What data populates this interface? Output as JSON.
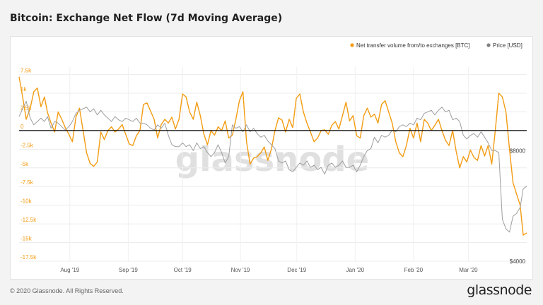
{
  "title": "Bitcoin: Exchange Net Flow (7d Moving Average)",
  "footer": "© 2020 Glassnode. All Rights Reserved.",
  "logo": "glassnode",
  "watermark": "glassnode",
  "colors": {
    "netflow": "#f39c12",
    "price": "#9e9e9e",
    "zero_line": "#000000"
  },
  "chart_data": {
    "type": "line",
    "title": "Bitcoin: Exchange Net Flow (7d Moving Average)",
    "legend_position": "top-right",
    "legend": [
      {
        "name": "Net transfer volume from/to exchanges [BTC]",
        "color": "#f39c12"
      },
      {
        "name": "Price [USD]",
        "color": "#808080"
      }
    ],
    "x_range": [
      0,
      100
    ],
    "x_ticks": [
      {
        "label": "Aug '19",
        "x": 10
      },
      {
        "label": "Sep '19",
        "x": 21.5
      },
      {
        "label": "Oct '19",
        "x": 32.2
      },
      {
        "label": "Nov '19",
        "x": 43.6
      },
      {
        "label": "Dec '19",
        "x": 54.7
      },
      {
        "label": "Jan '20",
        "x": 66.2
      },
      {
        "label": "Feb '20",
        "x": 77.7
      },
      {
        "label": "Mar '20",
        "x": 88.5
      }
    ],
    "y_left": {
      "ylim": [
        -17500,
        8500
      ],
      "ticks": [
        {
          "label": "7.5k",
          "v": 7500
        },
        {
          "label": "5k",
          "v": 5000
        },
        {
          "label": "2.5k",
          "v": 2500
        },
        {
          "label": "0",
          "v": 0
        },
        {
          "label": "-2.5k",
          "v": -2500
        },
        {
          "label": "-5k",
          "v": -5000
        },
        {
          "label": "-7.5k",
          "v": -7500
        },
        {
          "label": "-10k",
          "v": -10000
        },
        {
          "label": "-12.5k",
          "v": -12500
        },
        {
          "label": "-15k",
          "v": -15000
        },
        {
          "label": "-17.5k",
          "v": -17500
        }
      ]
    },
    "y_right": {
      "scale": "log",
      "ylim": [
        4000,
        13500
      ],
      "ticks": [
        {
          "label": "$8000",
          "v": 8000
        },
        {
          "label": "$4000",
          "v": 4000
        }
      ]
    },
    "series": [
      {
        "name": "Net transfer volume from/to exchanges [BTC]",
        "axis": "left",
        "points": [
          [
            0,
            7200
          ],
          [
            0.7,
            4500
          ],
          [
            1.4,
            1500
          ],
          [
            2.2,
            3000
          ],
          [
            2.9,
            5200
          ],
          [
            3.6,
            5700
          ],
          [
            4.3,
            3200
          ],
          [
            5,
            4500
          ],
          [
            5.6,
            2400
          ],
          [
            6.3,
            1000
          ],
          [
            7,
            -200
          ],
          [
            7.7,
            2500
          ],
          [
            8.4,
            1500
          ],
          [
            9.1,
            400
          ],
          [
            9.8,
            -500
          ],
          [
            10.5,
            -1500
          ],
          [
            11.2,
            1800
          ],
          [
            11.9,
            3000
          ],
          [
            12.6,
            0
          ],
          [
            13.3,
            -3000
          ],
          [
            14,
            -4400
          ],
          [
            14.7,
            -4800
          ],
          [
            15.4,
            -4200
          ],
          [
            16.1,
            -200
          ],
          [
            16.8,
            -1200
          ],
          [
            17.5,
            0
          ],
          [
            18.2,
            500
          ],
          [
            18.9,
            -200
          ],
          [
            19.6,
            200
          ],
          [
            20.3,
            800
          ],
          [
            21,
            -500
          ],
          [
            21.7,
            -1800
          ],
          [
            22.4,
            -2000
          ],
          [
            23.1,
            -700
          ],
          [
            23.8,
            0
          ],
          [
            24.5,
            3500
          ],
          [
            25.2,
            3700
          ],
          [
            25.9,
            2600
          ],
          [
            26.6,
            1500
          ],
          [
            27.3,
            -1000
          ],
          [
            28,
            800
          ],
          [
            28.7,
            1500
          ],
          [
            29.4,
            1000
          ],
          [
            30.1,
            1800
          ],
          [
            30.8,
            200
          ],
          [
            31.5,
            1500
          ],
          [
            32.2,
            4900
          ],
          [
            32.9,
            4500
          ],
          [
            33.6,
            2500
          ],
          [
            34.3,
            1500
          ],
          [
            35,
            3800
          ],
          [
            35.7,
            2000
          ],
          [
            36.4,
            -500
          ],
          [
            37.1,
            -1900
          ],
          [
            37.8,
            0
          ],
          [
            38.5,
            -600
          ],
          [
            39.2,
            500
          ],
          [
            39.9,
            0
          ],
          [
            40.6,
            1300
          ],
          [
            41.3,
            -1000
          ],
          [
            42,
            -600
          ],
          [
            42.7,
            1500
          ],
          [
            43.4,
            4000
          ],
          [
            44.1,
            5200
          ],
          [
            44.8,
            -1500
          ],
          [
            45.5,
            -4500
          ],
          [
            46.2,
            -3700
          ],
          [
            46.9,
            -3500
          ],
          [
            47.6,
            -3000
          ],
          [
            48.3,
            -2200
          ],
          [
            49,
            -4000
          ],
          [
            49.7,
            -2500
          ],
          [
            50.4,
            0
          ],
          [
            51.1,
            1700
          ],
          [
            51.8,
            1400
          ],
          [
            52.5,
            -200
          ],
          [
            53.2,
            1500
          ],
          [
            53.9,
            400
          ],
          [
            54.6,
            4300
          ],
          [
            55.3,
            4900
          ],
          [
            56,
            2500
          ],
          [
            56.7,
            1000
          ],
          [
            57.4,
            -200
          ],
          [
            58.1,
            -1500
          ],
          [
            58.8,
            -1000
          ],
          [
            59.5,
            0
          ],
          [
            60.2,
            100
          ],
          [
            60.9,
            -500
          ],
          [
            61.6,
            700
          ],
          [
            62.3,
            1200
          ],
          [
            63,
            200
          ],
          [
            63.7,
            2000
          ],
          [
            64.4,
            3800
          ],
          [
            65.1,
            1300
          ],
          [
            65.8,
            2000
          ],
          [
            66.5,
            -700
          ],
          [
            67.2,
            -1000
          ],
          [
            67.9,
            2000
          ],
          [
            68.6,
            3000
          ],
          [
            69.3,
            1800
          ],
          [
            70,
            2200
          ],
          [
            70.7,
            1000
          ],
          [
            71.4,
            3500
          ],
          [
            72.1,
            4000
          ],
          [
            72.8,
            2500
          ],
          [
            73.5,
            1000
          ],
          [
            74.2,
            -1500
          ],
          [
            74.9,
            -3000
          ],
          [
            75.6,
            -3500
          ],
          [
            76.3,
            -2000
          ],
          [
            77,
            300
          ],
          [
            77.7,
            -1000
          ],
          [
            78.4,
            1000
          ],
          [
            79.1,
            -1500
          ],
          [
            79.8,
            1500
          ],
          [
            80.5,
            1000
          ],
          [
            81.2,
            0
          ],
          [
            81.9,
            700
          ],
          [
            82.6,
            1500
          ],
          [
            83.3,
            0
          ],
          [
            84,
            -1300
          ],
          [
            84.7,
            -2000
          ],
          [
            85.4,
            0
          ],
          [
            86.1,
            -2800
          ],
          [
            86.8,
            -5000
          ],
          [
            87.5,
            -3500
          ],
          [
            88.2,
            -4200
          ],
          [
            88.9,
            -2600
          ],
          [
            89.6,
            -3600
          ],
          [
            90.3,
            -4000
          ],
          [
            91,
            -2000
          ],
          [
            91.7,
            -3400
          ],
          [
            92.4,
            -2000
          ],
          [
            93.1,
            -4500
          ],
          [
            93.8,
            0
          ],
          [
            94.5,
            5000
          ],
          [
            95.2,
            4500
          ],
          [
            95.9,
            2500
          ],
          [
            96.6,
            -2500
          ],
          [
            97.3,
            -7000
          ],
          [
            98,
            -8500
          ],
          [
            98.7,
            -10000
          ],
          [
            99.3,
            -14000
          ],
          [
            100,
            -13700
          ]
        ]
      },
      {
        "name": "Price [USD]",
        "axis": "right",
        "points": [
          [
            0,
            9900
          ],
          [
            0.7,
            10400
          ],
          [
            1.4,
            10900
          ],
          [
            2.2,
            9800
          ],
          [
            2.9,
            9400
          ],
          [
            3.6,
            9600
          ],
          [
            4.3,
            9800
          ],
          [
            5,
            9600
          ],
          [
            5.6,
            9900
          ],
          [
            6.3,
            9200
          ],
          [
            7,
            9600
          ],
          [
            7.7,
            9500
          ],
          [
            8.4,
            9300
          ],
          [
            9.1,
            9100
          ],
          [
            9.8,
            9300
          ],
          [
            10.5,
            9600
          ],
          [
            11.2,
            10100
          ],
          [
            11.9,
            10300
          ],
          [
            12.6,
            10400
          ],
          [
            13.3,
            10500
          ],
          [
            14,
            10200
          ],
          [
            14.7,
            10400
          ],
          [
            15.4,
            10000
          ],
          [
            16.1,
            10300
          ],
          [
            16.8,
            10000
          ],
          [
            17.5,
            9800
          ],
          [
            18.2,
            9600
          ],
          [
            18.9,
            9900
          ],
          [
            19.6,
            9700
          ],
          [
            20.3,
            9600
          ],
          [
            21,
            9800
          ],
          [
            21.7,
            9700
          ],
          [
            22.4,
            9600
          ],
          [
            23.1,
            9800
          ],
          [
            23.8,
            9500
          ],
          [
            24.5,
            9500
          ],
          [
            25.2,
            9400
          ],
          [
            25.9,
            9200
          ],
          [
            26.6,
            9100
          ],
          [
            27.3,
            9400
          ],
          [
            28,
            9200
          ],
          [
            28.7,
            9500
          ],
          [
            29.4,
            8800
          ],
          [
            30.1,
            8300
          ],
          [
            30.8,
            8200
          ],
          [
            31.5,
            8200
          ],
          [
            32.2,
            8400
          ],
          [
            32.9,
            8200
          ],
          [
            33.6,
            8300
          ],
          [
            34.3,
            8000
          ],
          [
            35,
            8400
          ],
          [
            35.7,
            8100
          ],
          [
            36.4,
            8200
          ],
          [
            37.1,
            7900
          ],
          [
            37.8,
            7700
          ],
          [
            38.5,
            7900
          ],
          [
            39.2,
            8300
          ],
          [
            39.9,
            7900
          ],
          [
            40.6,
            7400
          ],
          [
            41.3,
            7700
          ],
          [
            42,
            9400
          ],
          [
            42.7,
            9200
          ],
          [
            43.4,
            9300
          ],
          [
            44.1,
            9000
          ],
          [
            44.8,
            9400
          ],
          [
            45.5,
            9000
          ],
          [
            46.2,
            9200
          ],
          [
            46.9,
            8900
          ],
          [
            47.6,
            8700
          ],
          [
            48.3,
            8800
          ],
          [
            49,
            8500
          ],
          [
            49.7,
            8300
          ],
          [
            50.4,
            8100
          ],
          [
            51.1,
            7500
          ],
          [
            51.8,
            7400
          ],
          [
            52.5,
            7500
          ],
          [
            53.2,
            7100
          ],
          [
            53.9,
            7000
          ],
          [
            54.6,
            7200
          ],
          [
            55.3,
            7400
          ],
          [
            56,
            7300
          ],
          [
            56.7,
            7500
          ],
          [
            57.4,
            7200
          ],
          [
            58.1,
            7300
          ],
          [
            58.8,
            7100
          ],
          [
            59.5,
            7200
          ],
          [
            60.2,
            6900
          ],
          [
            60.9,
            7300
          ],
          [
            61.6,
            7400
          ],
          [
            62.3,
            7200
          ],
          [
            63,
            7300
          ],
          [
            63.7,
            7500
          ],
          [
            64.4,
            7200
          ],
          [
            65.1,
            7200
          ],
          [
            65.8,
            7300
          ],
          [
            66.5,
            7000
          ],
          [
            67.2,
            7300
          ],
          [
            67.9,
            7700
          ],
          [
            68.6,
            8000
          ],
          [
            69.3,
            8100
          ],
          [
            70,
            8700
          ],
          [
            70.7,
            8400
          ],
          [
            71.4,
            8800
          ],
          [
            72.1,
            8700
          ],
          [
            72.8,
            8800
          ],
          [
            73.5,
            9100
          ],
          [
            74.2,
            9000
          ],
          [
            74.9,
            9300
          ],
          [
            75.6,
            9400
          ],
          [
            76.3,
            9300
          ],
          [
            77,
            9500
          ],
          [
            77.7,
            9400
          ],
          [
            78.4,
            9800
          ],
          [
            79.1,
            9700
          ],
          [
            79.8,
            10100
          ],
          [
            80.5,
            10200
          ],
          [
            81.2,
            10300
          ],
          [
            81.9,
            10000
          ],
          [
            82.6,
            10300
          ],
          [
            83.3,
            10500
          ],
          [
            84,
            10200
          ],
          [
            84.7,
            10300
          ],
          [
            85.4,
            9700
          ],
          [
            86.1,
            9800
          ],
          [
            86.8,
            9600
          ],
          [
            87.5,
            8800
          ],
          [
            88.2,
            8600
          ],
          [
            88.9,
            8800
          ],
          [
            89.6,
            8900
          ],
          [
            90.3,
            8700
          ],
          [
            91,
            9000
          ],
          [
            91.7,
            8700
          ],
          [
            92.4,
            8400
          ],
          [
            93.1,
            8000
          ],
          [
            93.8,
            8000
          ],
          [
            94.5,
            7900
          ],
          [
            95.2,
            5200
          ],
          [
            95.9,
            4900
          ],
          [
            96.6,
            4800
          ],
          [
            97.3,
            5300
          ],
          [
            98,
            5400
          ],
          [
            98.7,
            5600
          ],
          [
            99.3,
            6300
          ],
          [
            100,
            6400
          ]
        ]
      }
    ]
  }
}
